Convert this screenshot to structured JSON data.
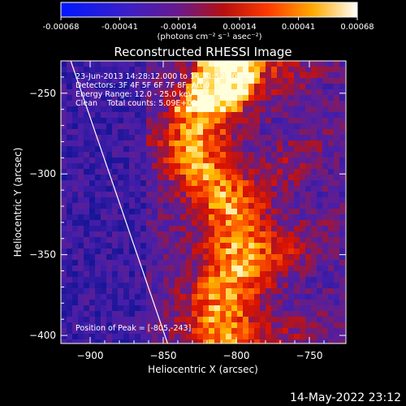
{
  "colorbar": {
    "tick_labels": [
      "-0.00068",
      "-0.00041",
      "-0.00014",
      "0.00014",
      "0.00041",
      "0.00068"
    ],
    "tick_values": [
      -0.00068,
      -0.00041,
      -0.00014,
      0.00014,
      0.00041,
      0.00068
    ],
    "range": [
      -0.00068,
      0.00068
    ],
    "units_label": "(photons cm⁻² s⁻¹ asec⁻²)"
  },
  "chart_data": {
    "type": "heatmap",
    "title": "Reconstructed RHESSI Image",
    "xlabel": "Heliocentric X (arcsec)",
    "ylabel": "Heliocentric Y (arcsec)",
    "xlim": [
      -920,
      -725
    ],
    "ylim": [
      -405,
      -230
    ],
    "xticks": [
      -900,
      -850,
      -800,
      -750
    ],
    "yticks": [
      -250,
      -300,
      -350,
      -400
    ],
    "xtick_labels": [
      "−900",
      "−850",
      "−800",
      "−750"
    ],
    "ytick_labels": [
      "−250",
      "−300",
      "−350",
      "−400"
    ],
    "colormap": "blue-purple-red-yellow-white",
    "limb_line": [
      [
        -914,
        -228
      ],
      [
        -847,
        -405
      ]
    ],
    "peak_position": [
      -805,
      -243
    ],
    "annotations": [
      "23-Jun-2013 14:28:12.000 to 14:31:52.000",
      "Detectors: 3F 4F 5F 6F 7F 8F, Att 0",
      "Energy Range: 12.0 - 25.0 keV",
      "Clean    Total counts: 5.09E+03"
    ],
    "peak_label": "Position of Peak = [-805,-243]"
  },
  "footer": {
    "timestamp": "14-May-2022 23:12"
  }
}
